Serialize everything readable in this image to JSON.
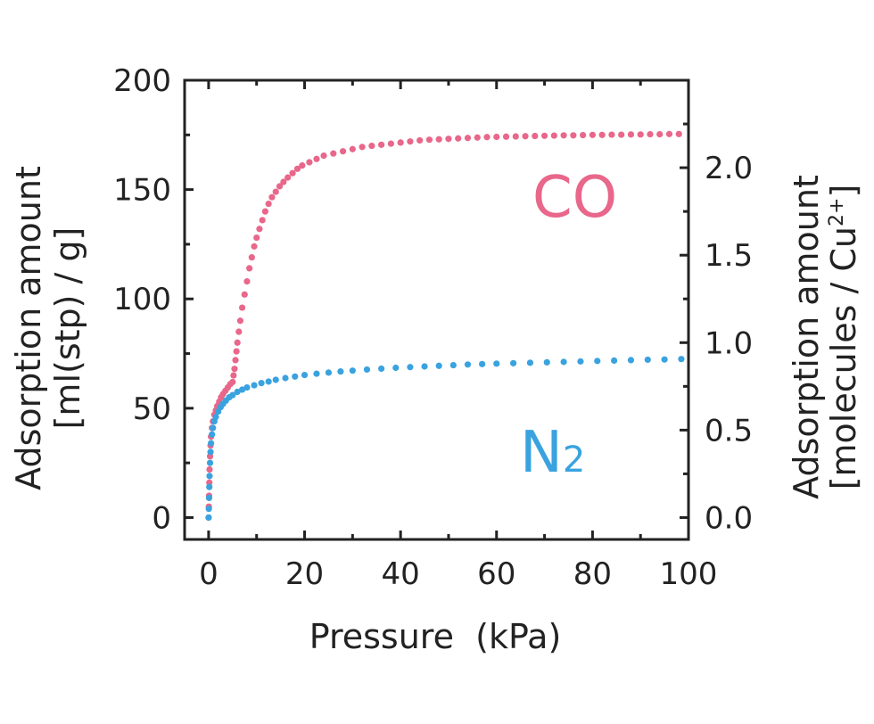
{
  "chart_data": {
    "type": "scatter",
    "xlabel": "Pressure  (kPa)",
    "ylabel_left": [
      "Adsorption amount",
      "[ml(stp) / g]"
    ],
    "ylabel_right": {
      "line1": "Adsorption amount",
      "line2_prefix": "[molecules / Cu",
      "line2_sup": "2+",
      "line2_suffix": "]"
    },
    "xlim": [
      -5,
      100
    ],
    "ylim": [
      -10,
      200
    ],
    "ylim_right": [
      -0.125,
      2.5
    ],
    "x_ticks": [
      0,
      20,
      40,
      60,
      80,
      100
    ],
    "x_tick_labels": [
      "0",
      "20",
      "40",
      "60",
      "80",
      "100"
    ],
    "y_ticks": [
      0,
      50,
      100,
      150,
      200
    ],
    "y_tick_labels": [
      "0",
      "50",
      "100",
      "150",
      "200"
    ],
    "y_right_ticks": [
      0.0,
      0.5,
      1.0,
      1.5,
      2.0
    ],
    "y_right_tick_labels": [
      "0.0",
      "0.5",
      "1.0",
      "1.5",
      "2.0"
    ],
    "grid": false,
    "series": [
      {
        "name": "CO",
        "color": "#e8678a",
        "points": [
          [
            0.0,
            0
          ],
          [
            0.05,
            5
          ],
          [
            0.1,
            10
          ],
          [
            0.15,
            16
          ],
          [
            0.2,
            22
          ],
          [
            0.3,
            28
          ],
          [
            0.4,
            33
          ],
          [
            0.5,
            37
          ],
          [
            0.7,
            41
          ],
          [
            0.9,
            44
          ],
          [
            1.2,
            47
          ],
          [
            1.5,
            49
          ],
          [
            1.8,
            51
          ],
          [
            2.2,
            53
          ],
          [
            2.6,
            55
          ],
          [
            3.0,
            56.5
          ],
          [
            3.5,
            58
          ],
          [
            4.0,
            59.5
          ],
          [
            4.5,
            61
          ],
          [
            5.0,
            62
          ],
          [
            5.2,
            65
          ],
          [
            5.4,
            68
          ],
          [
            5.6,
            72
          ],
          [
            5.8,
            76
          ],
          [
            6.0,
            80
          ],
          [
            6.3,
            85
          ],
          [
            6.6,
            90
          ],
          [
            7.0,
            96
          ],
          [
            7.5,
            102
          ],
          [
            8.0,
            108
          ],
          [
            8.5,
            114
          ],
          [
            9.0,
            119
          ],
          [
            9.5,
            124
          ],
          [
            10.0,
            128
          ],
          [
            10.6,
            132
          ],
          [
            11.2,
            136
          ],
          [
            11.8,
            140
          ],
          [
            12.5,
            143.5
          ],
          [
            13.2,
            146.5
          ],
          [
            14.0,
            149
          ],
          [
            14.8,
            151.5
          ],
          [
            15.6,
            153.5
          ],
          [
            16.5,
            155.5
          ],
          [
            17.5,
            157.5
          ],
          [
            18.5,
            159.5
          ],
          [
            19.5,
            161
          ],
          [
            21,
            162.5
          ],
          [
            22.5,
            164
          ],
          [
            24,
            165.5
          ],
          [
            26,
            166.5
          ],
          [
            28,
            167.5
          ],
          [
            30,
            168.5
          ],
          [
            32,
            169.5
          ],
          [
            34,
            170
          ],
          [
            36,
            170.5
          ],
          [
            38,
            171
          ],
          [
            40,
            171.5
          ],
          [
            42,
            172
          ],
          [
            44,
            172.5
          ],
          [
            46,
            172.8
          ],
          [
            48,
            173
          ],
          [
            50,
            173.2
          ],
          [
            52,
            173.4
          ],
          [
            54,
            173.6
          ],
          [
            56,
            173.8
          ],
          [
            58,
            174
          ],
          [
            60,
            174.1
          ],
          [
            62,
            174.2
          ],
          [
            64,
            174.3
          ],
          [
            66,
            174.4
          ],
          [
            68,
            174.5
          ],
          [
            70,
            174.6
          ],
          [
            72,
            174.7
          ],
          [
            74,
            174.8
          ],
          [
            76,
            174.8
          ],
          [
            78,
            174.9
          ],
          [
            80,
            175
          ],
          [
            82,
            175
          ],
          [
            84,
            175.1
          ],
          [
            86,
            175.1
          ],
          [
            88,
            175.2
          ],
          [
            90,
            175.2
          ],
          [
            92,
            175.3
          ],
          [
            94,
            175.3
          ],
          [
            96,
            175.4
          ],
          [
            98,
            175.4
          ]
        ]
      },
      {
        "name": "N",
        "name_subscript": "2",
        "color": "#3aa3df",
        "points": [
          [
            0.0,
            0
          ],
          [
            0.05,
            4
          ],
          [
            0.1,
            9
          ],
          [
            0.15,
            14
          ],
          [
            0.2,
            19
          ],
          [
            0.3,
            25
          ],
          [
            0.4,
            30
          ],
          [
            0.5,
            34
          ],
          [
            0.7,
            38
          ],
          [
            0.9,
            41
          ],
          [
            1.2,
            44
          ],
          [
            1.5,
            46
          ],
          [
            2.0,
            48.5
          ],
          [
            2.5,
            50.5
          ],
          [
            3.0,
            52
          ],
          [
            3.6,
            53.5
          ],
          [
            4.3,
            55
          ],
          [
            5.0,
            56
          ],
          [
            6.0,
            57.5
          ],
          [
            7.0,
            58.5
          ],
          [
            8.0,
            59.5
          ],
          [
            9.5,
            60.5
          ],
          [
            11,
            61.5
          ],
          [
            12.5,
            62.2
          ],
          [
            14,
            63
          ],
          [
            16,
            63.8
          ],
          [
            18,
            64.5
          ],
          [
            20,
            65.2
          ],
          [
            22.5,
            65.8
          ],
          [
            25,
            66.3
          ],
          [
            27.5,
            66.8
          ],
          [
            30,
            67.2
          ],
          [
            33,
            67.7
          ],
          [
            36,
            68.1
          ],
          [
            39,
            68.5
          ],
          [
            42,
            68.8
          ],
          [
            45,
            69.1
          ],
          [
            48,
            69.4
          ],
          [
            51,
            69.7
          ],
          [
            54,
            70
          ],
          [
            57,
            70.2
          ],
          [
            60,
            70.4
          ],
          [
            63.5,
            70.6
          ],
          [
            67,
            70.8
          ],
          [
            70.5,
            71
          ],
          [
            74,
            71.2
          ],
          [
            77.5,
            71.4
          ],
          [
            81,
            71.6
          ],
          [
            84.5,
            71.8
          ],
          [
            88,
            72
          ],
          [
            91.5,
            72.2
          ],
          [
            95,
            72.3
          ],
          [
            98.5,
            72.5
          ]
        ]
      }
    ]
  }
}
